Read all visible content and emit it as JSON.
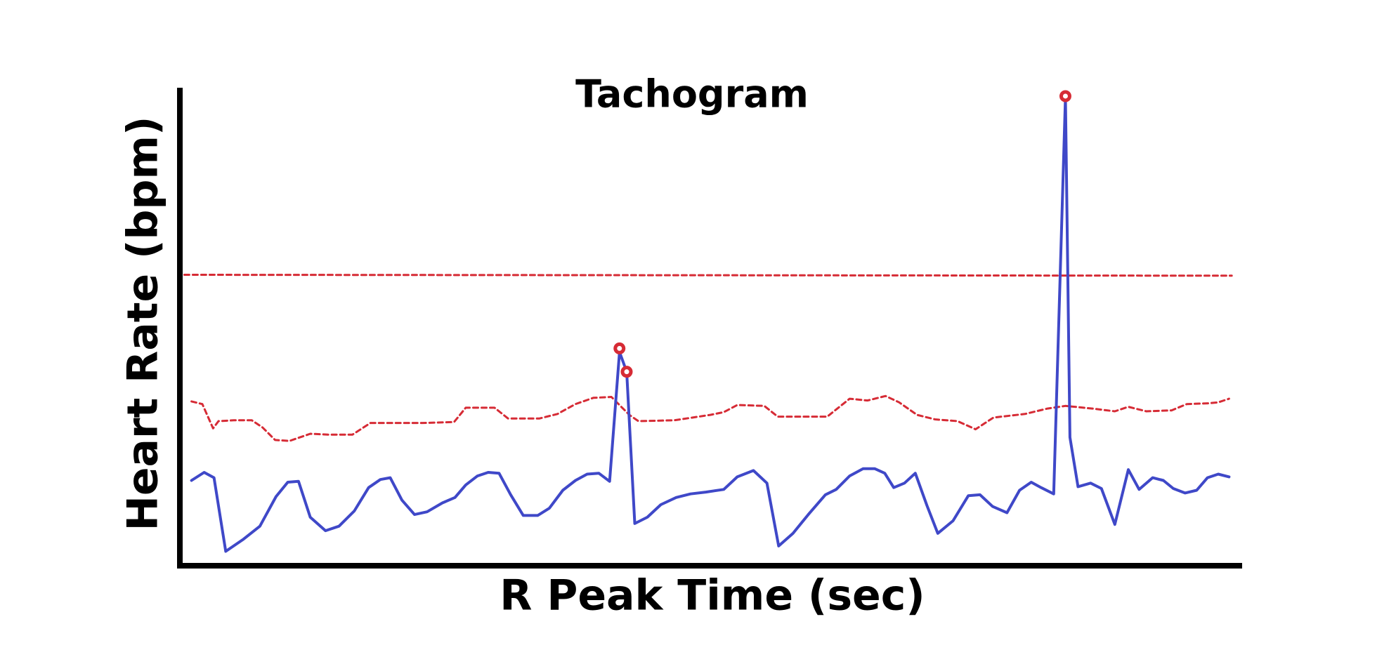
{
  "chart_data": {
    "type": "line",
    "title": "Tachogram",
    "x_label": "R Peak Time (sec)",
    "y_label": "Heart Rate (bpm)",
    "xlim": [
      0,
      1180
    ],
    "ylim": [
      0,
      530
    ],
    "series": [
      {
        "style": "dashed",
        "color": "#d62b35",
        "x": [
          5,
          1170
        ],
        "values": [
          324,
          323
        ]
      },
      {
        "style": "dashed",
        "color": "#d62b35",
        "x": [
          13,
          25,
          37,
          43,
          60,
          80,
          92,
          106,
          122,
          145,
          165,
          192,
          212,
          240,
          270,
          305,
          318,
          350,
          365,
          400,
          420,
          440,
          460,
          480,
          500,
          510,
          550,
          590,
          605,
          620,
          650,
          665,
          720,
          745,
          765,
          785,
          800,
          820,
          840,
          865,
          885,
          905,
          940,
          965,
          985,
          1015,
          1040,
          1055,
          1075,
          1103,
          1120,
          1145,
          1155,
          1167
        ],
        "values": [
          183,
          180,
          153,
          161,
          162,
          162,
          154,
          140,
          139,
          147,
          146,
          146,
          159,
          159,
          159,
          160,
          176,
          176,
          164,
          164,
          169,
          180,
          187,
          188,
          168,
          161,
          162,
          168,
          171,
          179,
          178,
          166,
          166,
          186,
          184,
          189,
          182,
          168,
          163,
          161,
          152,
          165,
          169,
          175,
          178,
          175,
          172,
          177,
          172,
          173,
          180,
          181,
          182,
          186
        ]
      },
      {
        "style": "solid",
        "color": "#3f48c8",
        "x": [
          13,
          27,
          38,
          51,
          70,
          89,
          107,
          120,
          132,
          145,
          162,
          177,
          194,
          210,
          223,
          234,
          247,
          261,
          275,
          292,
          306,
          318,
          331,
          343,
          355,
          368,
          382,
          398,
          411,
          426,
          440,
          453,
          466,
          478,
          489,
          497,
          506,
          520,
          535,
          552,
          568,
          585,
          605,
          620,
          638,
          653,
          666,
          682,
          699,
          718,
          730,
          745,
          760,
          773,
          784,
          794,
          806,
          818,
          831,
          843,
          860,
          877,
          890,
          904,
          920,
          934,
          947,
          958,
          972,
          985,
          990,
          999,
          1013,
          1025,
          1040,
          1055,
          1067,
          1082,
          1094,
          1105,
          1118,
          1131,
          1143,
          1155,
          1167
        ],
        "values": [
          95,
          104,
          98,
          16,
          29,
          44,
          77,
          93,
          94,
          54,
          39,
          44,
          61,
          87,
          96,
          98,
          73,
          57,
          60,
          70,
          76,
          90,
          100,
          104,
          103,
          79,
          56,
          56,
          64,
          84,
          95,
          102,
          103,
          94,
          238,
          216,
          47,
          54,
          68,
          76,
          80,
          82,
          85,
          99,
          106,
          92,
          22,
          36,
          57,
          79,
          85,
          100,
          108,
          108,
          103,
          87,
          92,
          103,
          67,
          36,
          50,
          78,
          79,
          66,
          59,
          84,
          93,
          87,
          80,
          522,
          143,
          88,
          92,
          86,
          46,
          107,
          85,
          98,
          95,
          86,
          81,
          84,
          98,
          102,
          99
        ]
      },
      {
        "style": "markers",
        "color": "#d62b35",
        "x": [
          489,
          497,
          985
        ],
        "values": [
          242,
          216,
          523
        ]
      }
    ]
  }
}
